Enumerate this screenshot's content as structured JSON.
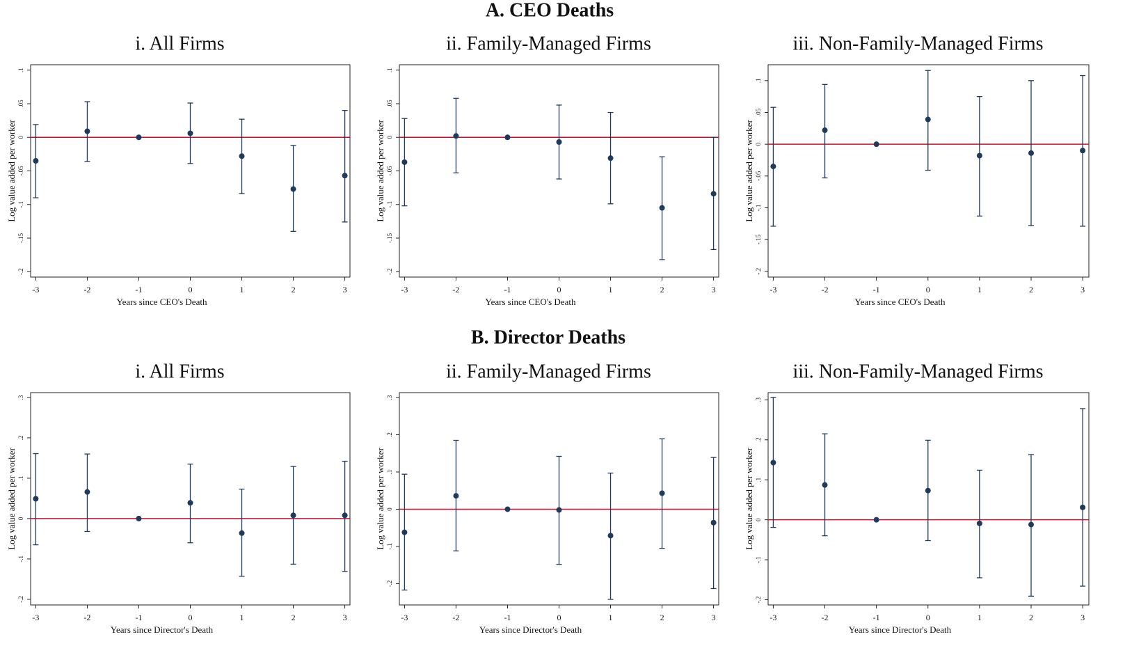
{
  "sections": [
    {
      "title": "A. CEO Deaths"
    },
    {
      "title": "B. Director Deaths"
    }
  ],
  "chart_data": [
    {
      "type": "errorbar",
      "title": "i.  All Firms",
      "xlabel": "Years since CEO's Death",
      "ylabel": "Log value added per worker",
      "x": [
        -3,
        -2,
        -1,
        0,
        1,
        2,
        3
      ],
      "values": [
        -0.035,
        0.009,
        0,
        0.006,
        -0.028,
        -0.077,
        -0.057
      ],
      "ci_low": [
        -0.09,
        -0.036,
        null,
        -0.039,
        -0.084,
        -0.14,
        -0.126
      ],
      "ci_high": [
        0.019,
        0.053,
        null,
        0.051,
        0.027,
        -0.012,
        0.04
      ],
      "xlim": [
        -3.1,
        3.1
      ],
      "xticks": [
        -3,
        -2,
        -1,
        0,
        1,
        2,
        3
      ],
      "ylim": [
        -0.208,
        0.108
      ],
      "yticks": [
        {
          "value": 0.1,
          "label": ".1"
        },
        {
          "value": 0.05,
          "label": ".05"
        },
        0,
        {
          "value": -0.05,
          "label": "-.05"
        },
        {
          "value": -0.1,
          "label": "-.1"
        },
        {
          "value": -0.15,
          "label": "-.15"
        },
        {
          "value": -0.2,
          "label": "-.2"
        }
      ],
      "hline": 0,
      "hline_color": "#c8102e",
      "color": "#1f3a5a"
    },
    {
      "type": "errorbar",
      "title": "ii.  Family-Managed Firms",
      "xlabel": "Years since CEO's Death",
      "ylabel": "Log value added per worker",
      "x": [
        -3,
        -2,
        -1,
        0,
        1,
        2,
        3
      ],
      "values": [
        -0.037,
        0.002,
        0,
        -0.007,
        -0.031,
        -0.105,
        -0.084
      ],
      "ci_low": [
        -0.102,
        -0.053,
        null,
        -0.062,
        -0.099,
        -0.182,
        -0.167
      ],
      "ci_high": [
        0.028,
        0.058,
        null,
        0.048,
        0.037,
        -0.029,
        0
      ],
      "xlim": [
        -3.1,
        3.1
      ],
      "xticks": [
        -3,
        -2,
        -1,
        0,
        1,
        2,
        3
      ],
      "ylim": [
        -0.208,
        0.108
      ],
      "yticks": [
        {
          "value": 0.1,
          "label": ".1"
        },
        {
          "value": 0.05,
          "label": ".05"
        },
        0,
        {
          "value": -0.05,
          "label": "-.05"
        },
        {
          "value": -0.1,
          "label": "-.1"
        },
        {
          "value": -0.15,
          "label": "-.15"
        },
        {
          "value": -0.2,
          "label": "-.2"
        }
      ],
      "hline": 0,
      "hline_color": "#c8102e",
      "color": "#1f3a5a"
    },
    {
      "type": "errorbar",
      "title": "iii.  Non-Family-Managed Firms",
      "xlabel": "Years since CEO's Death",
      "ylabel": "Log value added per worker",
      "x": [
        -3,
        -2,
        -1,
        0,
        1,
        2,
        3
      ],
      "values": [
        -0.035,
        0.022,
        0,
        0.039,
        -0.018,
        -0.014,
        -0.01
      ],
      "ci_low": [
        -0.129,
        -0.053,
        null,
        -0.041,
        -0.113,
        -0.128,
        -0.129
      ],
      "ci_high": [
        0.058,
        0.094,
        null,
        0.116,
        0.075,
        0.1,
        0.108
      ],
      "xlim": [
        -3.1,
        3.12
      ],
      "xticks": [
        -3,
        -2,
        -1,
        0,
        1,
        2,
        3
      ],
      "ylim": [
        -0.209,
        0.125
      ],
      "yticks": [
        {
          "value": 0.1,
          "label": ".1"
        },
        {
          "value": 0.05,
          "label": ".05"
        },
        0,
        {
          "value": -0.05,
          "label": "-.05"
        },
        {
          "value": -0.1,
          "label": "-.1"
        },
        {
          "value": -0.15,
          "label": "-.15"
        },
        {
          "value": -0.2,
          "label": "-.2"
        }
      ],
      "hline": 0,
      "hline_color": "#c8102e",
      "color": "#1f3a5a"
    },
    {
      "type": "errorbar",
      "title": "i.  All Firms",
      "xlabel": "Years since Director's Death",
      "ylabel": "Log value added per worker",
      "x": [
        -3,
        -2,
        -1,
        0,
        1,
        2,
        3
      ],
      "values": [
        0.049,
        0.066,
        0,
        0.039,
        -0.036,
        0.008,
        0.008
      ],
      "ci_low": [
        -0.065,
        -0.032,
        null,
        -0.06,
        -0.143,
        -0.113,
        -0.131
      ],
      "ci_high": [
        0.161,
        0.16,
        null,
        0.135,
        0.073,
        0.129,
        0.142
      ],
      "xlim": [
        -3.1,
        3.1
      ],
      "xticks": [
        -3,
        -2,
        -1,
        0,
        1,
        2,
        3
      ],
      "ylim": [
        -0.214,
        0.312
      ],
      "yticks": [
        {
          "value": 0.3,
          "label": ".3"
        },
        {
          "value": 0.2,
          "label": ".2"
        },
        {
          "value": 0.1,
          "label": ".1"
        },
        0,
        {
          "value": -0.1,
          "label": "-.1"
        },
        {
          "value": -0.2,
          "label": "-.2"
        }
      ],
      "hline": 0,
      "hline_color": "#c8102e",
      "color": "#1f3a5a"
    },
    {
      "type": "errorbar",
      "title": "ii.  Family-Managed Firms",
      "xlabel": "Years since Director's Death",
      "ylabel": "Log value added per worker",
      "x": [
        -3,
        -2,
        -1,
        0,
        1,
        2,
        3
      ],
      "values": [
        -0.062,
        0.036,
        0,
        -0.002,
        -0.071,
        0.043,
        -0.036
      ],
      "ci_low": [
        -0.217,
        -0.112,
        null,
        -0.148,
        -0.242,
        -0.105,
        -0.213
      ],
      "ci_high": [
        0.094,
        0.185,
        null,
        0.142,
        0.097,
        0.189,
        0.139
      ],
      "xlim": [
        -3.1,
        3.1
      ],
      "xticks": [
        -3,
        -2,
        -1,
        0,
        1,
        2,
        3
      ],
      "ylim": [
        -0.257,
        0.313
      ],
      "yticks": [
        {
          "value": 0.3,
          "label": ".3"
        },
        {
          "value": 0.2,
          "label": ".2"
        },
        {
          "value": 0.1,
          "label": ".1"
        },
        0,
        {
          "value": -0.1,
          "label": "-.1"
        },
        {
          "value": -0.2,
          "label": "-.2"
        }
      ],
      "hline": 0,
      "hline_color": "#c8102e",
      "color": "#1f3a5a"
    },
    {
      "type": "errorbar",
      "title": "iii.  Non-Family-Managed Firms",
      "xlabel": "Years since Director's Death",
      "ylabel": "Log value added per worker",
      "x": [
        -3,
        -2,
        -1,
        0,
        1,
        2,
        3
      ],
      "values": [
        0.143,
        0.087,
        0,
        0.073,
        -0.009,
        -0.012,
        0.031
      ],
      "ci_low": [
        -0.019,
        -0.04,
        null,
        -0.052,
        -0.145,
        -0.191,
        -0.166
      ],
      "ci_high": [
        0.306,
        0.215,
        null,
        0.199,
        0.124,
        0.163,
        0.278
      ],
      "xlim": [
        -3.1,
        3.12
      ],
      "xticks": [
        -3,
        -2,
        -1,
        0,
        1,
        2,
        3
      ],
      "ylim": [
        -0.213,
        0.318
      ],
      "yticks": [
        {
          "value": 0.3,
          "label": ".3"
        },
        {
          "value": 0.2,
          "label": ".2"
        },
        {
          "value": 0.1,
          "label": ".1"
        },
        0,
        {
          "value": -0.1,
          "label": "-.1"
        },
        {
          "value": -0.2,
          "label": "-.2"
        }
      ],
      "hline": 0,
      "hline_color": "#c8102e",
      "color": "#1f3a5a"
    }
  ]
}
